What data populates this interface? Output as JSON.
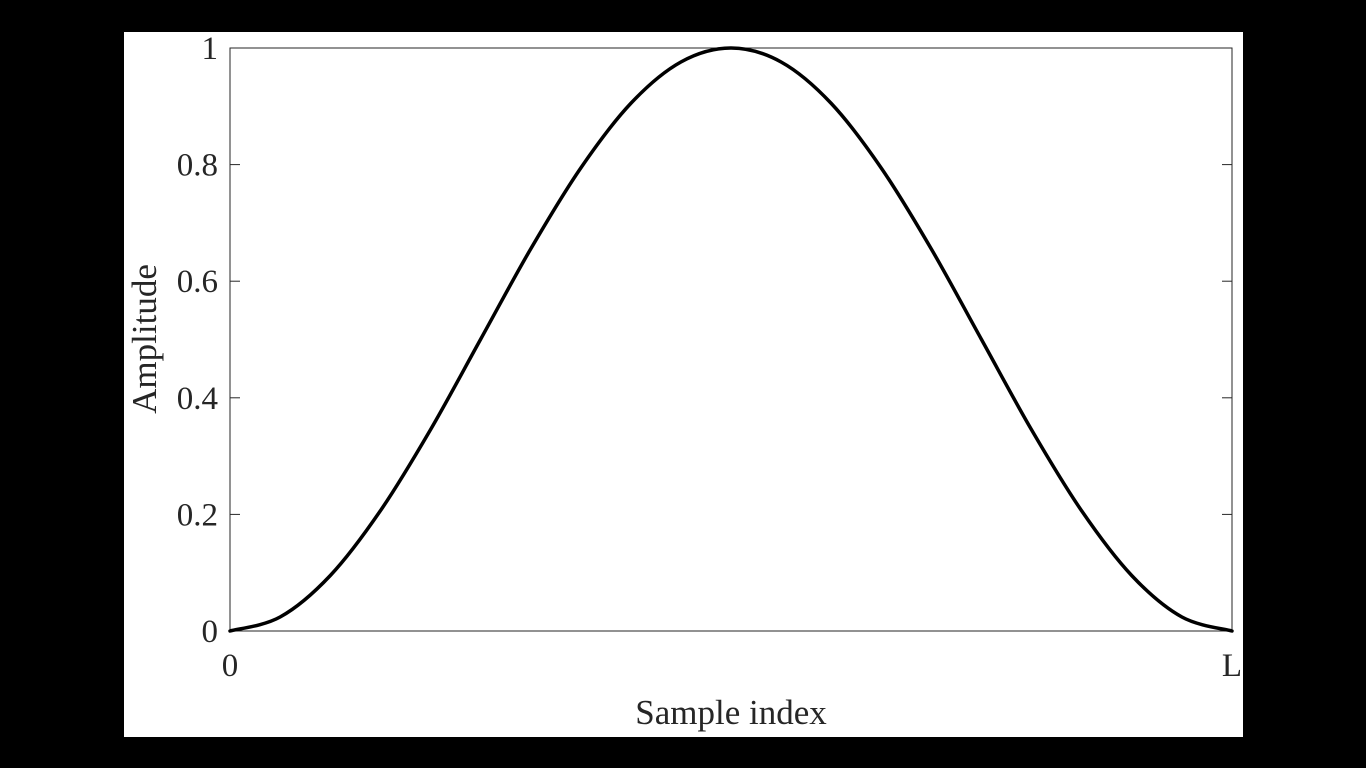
{
  "colors": {
    "background": "#000000",
    "canvas": "#ffffff",
    "line": "#000000",
    "text": "#262626"
  },
  "chart_data": {
    "type": "line",
    "title": "",
    "xlabel": "Sample index",
    "ylabel": "Amplitude",
    "xlim": [
      0,
      1
    ],
    "ylim": [
      0,
      1
    ],
    "grid": false,
    "x_tick_labels": [
      {
        "value": 0,
        "label": "0"
      },
      {
        "value": 1,
        "label": "L"
      }
    ],
    "y_tick_labels": [
      {
        "value": 0,
        "label": "0"
      },
      {
        "value": 0.2,
        "label": "0.2"
      },
      {
        "value": 0.4,
        "label": "0.4"
      },
      {
        "value": 0.6,
        "label": "0.6"
      },
      {
        "value": 0.8,
        "label": "0.8"
      },
      {
        "value": 1,
        "label": "1"
      }
    ],
    "series": [
      {
        "x": [
          0,
          0.05,
          0.1,
          0.15,
          0.2,
          0.25,
          0.3,
          0.35,
          0.4,
          0.45,
          0.5,
          0.55,
          0.6,
          0.65,
          0.7,
          0.75,
          0.8,
          0.85,
          0.9,
          0.95,
          1
        ],
        "values": [
          0,
          0.024,
          0.095,
          0.206,
          0.345,
          0.5,
          0.655,
          0.794,
          0.905,
          0.976,
          1,
          0.976,
          0.905,
          0.794,
          0.655,
          0.5,
          0.345,
          0.206,
          0.095,
          0.024,
          0
        ]
      }
    ]
  }
}
